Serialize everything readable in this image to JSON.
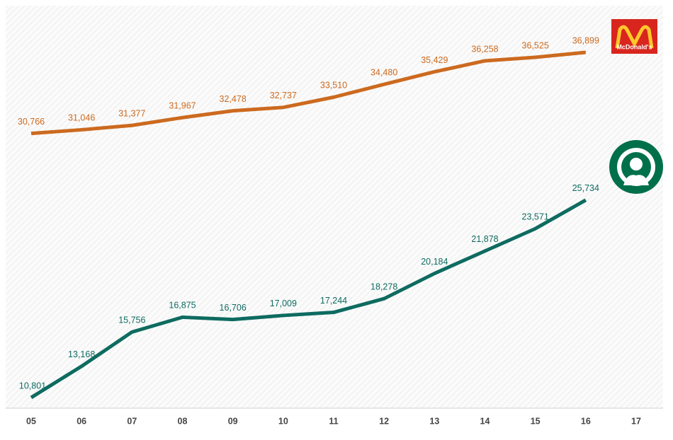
{
  "chart_data": {
    "type": "line",
    "categories": [
      "05",
      "06",
      "07",
      "08",
      "09",
      "10",
      "11",
      "12",
      "13",
      "14",
      "15",
      "16",
      "17"
    ],
    "series": [
      {
        "name": "McDonald's",
        "color": "#cc6a1f",
        "values": [
          30766,
          31046,
          31377,
          31967,
          32478,
          32737,
          33510,
          34480,
          35429,
          36258,
          36525,
          36899,
          null
        ],
        "value_labels": [
          "30,766",
          "31,046",
          "31,377",
          "31,967",
          "32,478",
          "32,737",
          "33,510",
          "34,480",
          "35,429",
          "36,258",
          "36,525",
          "36,899",
          null
        ]
      },
      {
        "color": "#0e6b60",
        "values": [
          10801,
          13168,
          15756,
          16875,
          16706,
          17009,
          17244,
          18278,
          20184,
          21878,
          23571,
          25734,
          null
        ],
        "value_labels": [
          "10,801",
          "13,168",
          "15,756",
          "16,875",
          "16,706",
          "17,009",
          "17,244",
          "18,278",
          "20,184",
          "21,878",
          "23,571",
          "25,734",
          null
        ]
      }
    ],
    "ylim": [
      10000,
      40000
    ]
  }
}
